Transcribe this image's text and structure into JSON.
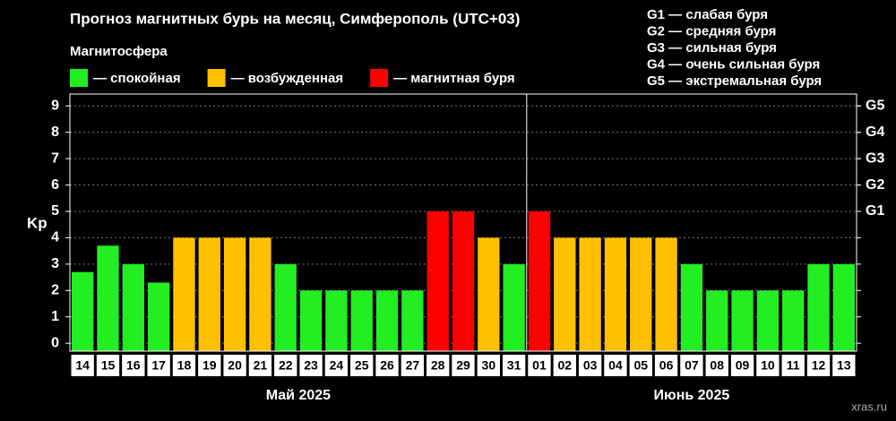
{
  "chart_data": {
    "type": "bar",
    "title": "Прогноз магнитных бурь на месяц, Симферополь (UTC+03)",
    "subtitle": "Магнитосфера",
    "legend": [
      {
        "name": "— спокойная",
        "color": "#22ee22"
      },
      {
        "name": "— возбужденная",
        "color": "#ffc000"
      },
      {
        "name": "— магнитная буря",
        "color": "#ff0000"
      }
    ],
    "storm_legend": [
      "G1 — слабая буря",
      "G2 — средняя буря",
      "G3 — сильная буря",
      "G4 — очень сильная буря",
      "G5 — экстремальная буря"
    ],
    "y_label": "Kp",
    "categories": [
      "14",
      "15",
      "16",
      "17",
      "18",
      "19",
      "20",
      "21",
      "22",
      "23",
      "24",
      "25",
      "26",
      "27",
      "28",
      "29",
      "30",
      "31",
      "01",
      "02",
      "03",
      "04",
      "05",
      "06",
      "07",
      "08",
      "09",
      "10",
      "11",
      "12",
      "13"
    ],
    "values": [
      2.7,
      3.7,
      3,
      2.3,
      4,
      4,
      4,
      4,
      3,
      2,
      2,
      2,
      2,
      2,
      5,
      5,
      4,
      3,
      5,
      4,
      4,
      4,
      4,
      4,
      3,
      2,
      2,
      2,
      2,
      3,
      3
    ],
    "colors": [
      "#22ee22",
      "#22ee22",
      "#22ee22",
      "#22ee22",
      "#ffc000",
      "#ffc000",
      "#ffc000",
      "#ffc000",
      "#22ee22",
      "#22ee22",
      "#22ee22",
      "#22ee22",
      "#22ee22",
      "#22ee22",
      "#ff0000",
      "#ff0000",
      "#ffc000",
      "#22ee22",
      "#ff0000",
      "#ffc000",
      "#ffc000",
      "#ffc000",
      "#ffc000",
      "#ffc000",
      "#22ee22",
      "#22ee22",
      "#22ee22",
      "#22ee22",
      "#22ee22",
      "#22ee22",
      "#22ee22"
    ],
    "months": [
      "Май 2025",
      "Июнь 2025"
    ],
    "ylim": [
      -0.3,
      9.45
    ],
    "yticks": [
      0,
      1,
      2,
      3,
      4,
      5,
      6,
      7,
      8,
      9
    ],
    "y2lim": [
      -0.3,
      9.45
    ],
    "y2ticks": [
      {
        "value": 5,
        "label": "G1"
      },
      {
        "value": 6,
        "label": "G2"
      },
      {
        "value": 7,
        "label": "G3"
      },
      {
        "value": 8,
        "label": "G4"
      },
      {
        "value": 9,
        "label": "G5"
      }
    ],
    "grid": true,
    "watermark": "xras.ru"
  }
}
